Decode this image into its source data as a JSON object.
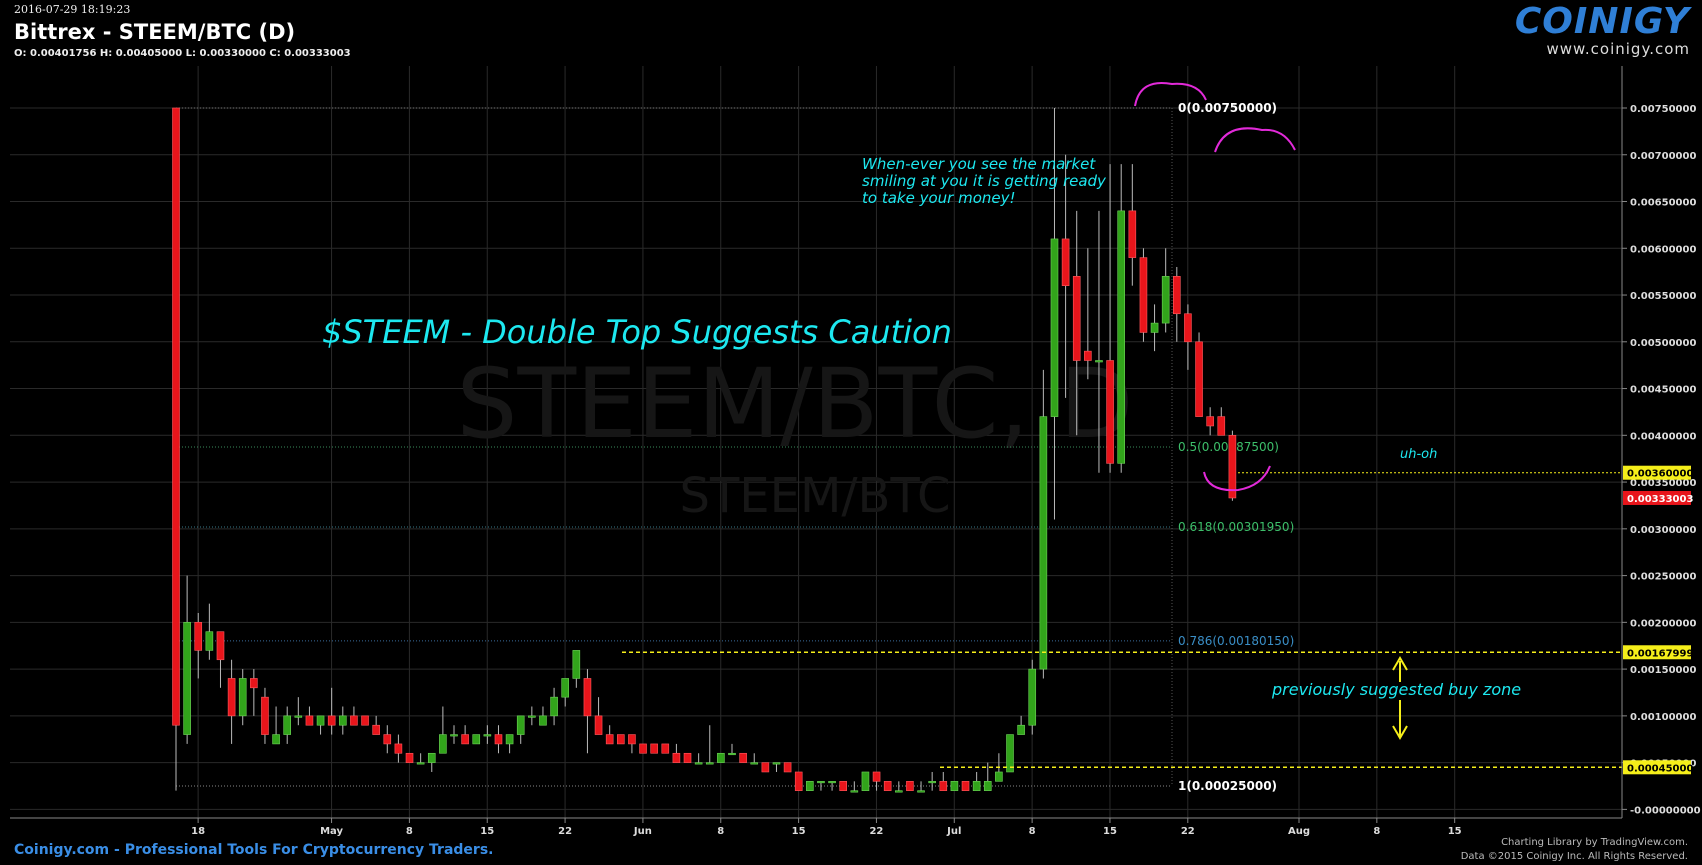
{
  "header": {
    "timestamp": "2016-07-29 18:19:23",
    "title": "Bittrex - STEEM/BTC (D)",
    "ohlc": "O: 0.00401756 H: 0.00405000 L: 0.00330000 C: 0.00333003"
  },
  "logo": {
    "name": "COINIGY",
    "url": "www.coinigy.com"
  },
  "footer": {
    "tagline": "Coinigy.com - Professional Tools For Cryptocurrency Traders.",
    "credit1": "Charting Library by TradingView.com.",
    "credit2": "Data ©2015 Coinigy Inc. All Rights Reserved."
  },
  "annotations": {
    "main_title": "$STEEM - Double Top Suggests Caution",
    "smile_note_1": "When-ever you see the market",
    "smile_note_2": "smiling at you it is getting ready",
    "smile_note_3": "to take your money!",
    "uh_oh": "uh-oh",
    "buy_zone": "previously suggested buy zone"
  },
  "colors": {
    "background": "#000000",
    "grid": "#2a2a2a",
    "up": "#32a41b",
    "down": "#e8151b",
    "fib": "#3a8c8c",
    "annotation": "#1de8f0",
    "smile": "#e22ad9",
    "marker": "#f5ee1a",
    "price_tag": "#e8151b"
  },
  "chart_data": {
    "type": "candlestick",
    "watermark": [
      "STEEM/BTC, D",
      "STEEM/BTC"
    ],
    "x_ticks": [
      "18",
      "May",
      "8",
      "15",
      "22",
      "Jun",
      "8",
      "15",
      "22",
      "Jul",
      "8",
      "15",
      "22",
      "Aug",
      "8",
      "15"
    ],
    "y_ticks": [
      "0.00750000",
      "0.00700000",
      "0.00650000",
      "0.00600000",
      "0.00550000",
      "0.00500000",
      "0.00450000",
      "0.00400000",
      "0.00350000",
      "0.00300000",
      "0.00250000",
      "0.00200000",
      "0.00150000",
      "0.00100000",
      "0.00050000",
      "-0.00000000"
    ],
    "ylim": [
      -3e-05,
      0.0081
    ],
    "fib_levels": [
      {
        "label": "0(0.00750000)",
        "value": 0.0075
      },
      {
        "label": "0.5(0.00387500)",
        "value": 0.003875
      },
      {
        "label": "0.618(0.00301950)",
        "value": 0.0030195
      },
      {
        "label": "0.786(0.00180150)",
        "value": 0.0018015
      },
      {
        "label": "1(0.00025000)",
        "value": 0.00025
      }
    ],
    "price_tags": [
      {
        "label": "0.00360000",
        "value": 0.0036,
        "style": "yellow"
      },
      {
        "label": "0.00333003",
        "value": 0.00333003,
        "style": "red"
      },
      {
        "label": "0.00167999",
        "value": 0.00167999,
        "style": "yellow"
      },
      {
        "label": "0.00045000",
        "value": 0.00045,
        "style": "yellow"
      }
    ],
    "candles": [
      [
        0.0075,
        0.0075,
        0.0002,
        0.0009
      ],
      [
        0.0008,
        0.0025,
        0.0007,
        0.002
      ],
      [
        0.002,
        0.0021,
        0.0014,
        0.0017
      ],
      [
        0.0017,
        0.0022,
        0.0016,
        0.0019
      ],
      [
        0.0019,
        0.0019,
        0.0013,
        0.0016
      ],
      [
        0.0014,
        0.0016,
        0.0007,
        0.001
      ],
      [
        0.001,
        0.0015,
        0.0009,
        0.0014
      ],
      [
        0.0014,
        0.0015,
        0.001,
        0.0013
      ],
      [
        0.0012,
        0.0013,
        0.0007,
        0.0008
      ],
      [
        0.0007,
        0.0011,
        0.0007,
        0.0008
      ],
      [
        0.0008,
        0.0011,
        0.0007,
        0.001
      ],
      [
        0.001,
        0.0012,
        0.0009,
        0.001
      ],
      [
        0.001,
        0.0011,
        0.0009,
        0.0009
      ],
      [
        0.0009,
        0.001,
        0.0008,
        0.001
      ],
      [
        0.001,
        0.0013,
        0.0008,
        0.0009
      ],
      [
        0.0009,
        0.0011,
        0.0008,
        0.001
      ],
      [
        0.001,
        0.0011,
        0.0009,
        0.0009
      ],
      [
        0.001,
        0.001,
        0.0009,
        0.0009
      ],
      [
        0.0009,
        0.001,
        0.0008,
        0.0008
      ],
      [
        0.0008,
        0.0009,
        0.0006,
        0.0007
      ],
      [
        0.0007,
        0.0008,
        0.0005,
        0.0006
      ],
      [
        0.0006,
        0.0006,
        0.0005,
        0.0005
      ],
      [
        0.0005,
        0.0006,
        0.0005,
        0.0005
      ],
      [
        0.0005,
        0.0006,
        0.0004,
        0.0006
      ],
      [
        0.0006,
        0.0011,
        0.0006,
        0.0008
      ],
      [
        0.0008,
        0.0009,
        0.0007,
        0.0008
      ],
      [
        0.0008,
        0.0009,
        0.0007,
        0.0007
      ],
      [
        0.0007,
        0.0008,
        0.0007,
        0.0008
      ],
      [
        0.0008,
        0.0009,
        0.0007,
        0.0008
      ],
      [
        0.0008,
        0.0009,
        0.0006,
        0.0007
      ],
      [
        0.0007,
        0.0008,
        0.0006,
        0.0008
      ],
      [
        0.0008,
        0.001,
        0.0007,
        0.001
      ],
      [
        0.001,
        0.0011,
        0.0009,
        0.001
      ],
      [
        0.0009,
        0.0011,
        0.0009,
        0.001
      ],
      [
        0.001,
        0.0013,
        0.0009,
        0.0012
      ],
      [
        0.0012,
        0.0014,
        0.0011,
        0.0014
      ],
      [
        0.0014,
        0.0017,
        0.0013,
        0.0017
      ],
      [
        0.0014,
        0.0015,
        0.0006,
        0.001
      ],
      [
        0.001,
        0.0012,
        0.0008,
        0.0008
      ],
      [
        0.0008,
        0.0009,
        0.0007,
        0.0007
      ],
      [
        0.0008,
        0.0008,
        0.0007,
        0.0007
      ],
      [
        0.0008,
        0.0008,
        0.0006,
        0.0007
      ],
      [
        0.0007,
        0.0007,
        0.0006,
        0.0006
      ],
      [
        0.0007,
        0.0007,
        0.0006,
        0.0006
      ],
      [
        0.0007,
        0.0007,
        0.0006,
        0.0006
      ],
      [
        0.0006,
        0.0007,
        0.0005,
        0.0005
      ],
      [
        0.0006,
        0.0006,
        0.0005,
        0.0005
      ],
      [
        0.0005,
        0.0006,
        0.0005,
        0.0005
      ],
      [
        0.0005,
        0.0009,
        0.0005,
        0.0005
      ],
      [
        0.0005,
        0.0006,
        0.0005,
        0.0006
      ],
      [
        0.0006,
        0.0007,
        0.0006,
        0.0006
      ],
      [
        0.0006,
        0.0006,
        0.0005,
        0.0005
      ],
      [
        0.0005,
        0.0006,
        0.0005,
        0.0005
      ],
      [
        0.0005,
        0.0005,
        0.0004,
        0.0004
      ],
      [
        0.0005,
        0.0005,
        0.0004,
        0.0005
      ],
      [
        0.0005,
        0.0005,
        0.0004,
        0.0004
      ],
      [
        0.0004,
        0.0004,
        0.0002,
        0.0002
      ],
      [
        0.0002,
        0.0003,
        0.0002,
        0.0003
      ],
      [
        0.0003,
        0.0003,
        0.0002,
        0.0003
      ],
      [
        0.0003,
        0.0003,
        0.0002,
        0.0003
      ],
      [
        0.0003,
        0.0003,
        0.0002,
        0.0002
      ],
      [
        0.0002,
        0.0003,
        0.0002,
        0.0002
      ],
      [
        0.0002,
        0.0004,
        0.0002,
        0.0004
      ],
      [
        0.0004,
        0.0004,
        0.0002,
        0.0003
      ],
      [
        0.0003,
        0.0003,
        0.0002,
        0.0002
      ],
      [
        0.0002,
        0.0003,
        0.0002,
        0.0002
      ],
      [
        0.0003,
        0.0003,
        0.0002,
        0.0002
      ],
      [
        0.0002,
        0.0003,
        0.0002,
        0.0002
      ],
      [
        0.0003,
        0.0004,
        0.0002,
        0.0003
      ],
      [
        0.0003,
        0.0004,
        0.0002,
        0.0002
      ],
      [
        0.0002,
        0.0003,
        0.0002,
        0.0003
      ],
      [
        0.0003,
        0.0003,
        0.0002,
        0.0002
      ],
      [
        0.0002,
        0.0004,
        0.0002,
        0.0003
      ],
      [
        0.0002,
        0.0005,
        0.0002,
        0.0003
      ],
      [
        0.0003,
        0.0006,
        0.0003,
        0.0004
      ],
      [
        0.0004,
        0.0008,
        0.0004,
        0.0008
      ],
      [
        0.0008,
        0.001,
        0.0008,
        0.0009
      ],
      [
        0.0009,
        0.0016,
        0.0008,
        0.0015
      ],
      [
        0.0015,
        0.0047,
        0.0014,
        0.0042
      ],
      [
        0.0042,
        0.0075,
        0.0031,
        0.0061
      ],
      [
        0.0061,
        0.007,
        0.0044,
        0.0056
      ],
      [
        0.0057,
        0.0064,
        0.004,
        0.0048
      ],
      [
        0.0049,
        0.006,
        0.0046,
        0.0048
      ],
      [
        0.0048,
        0.0064,
        0.0036,
        0.0048
      ],
      [
        0.0048,
        0.0069,
        0.0036,
        0.0037
      ],
      [
        0.0037,
        0.0069,
        0.0036,
        0.0064
      ],
      [
        0.0064,
        0.0069,
        0.0056,
        0.0059
      ],
      [
        0.0059,
        0.006,
        0.005,
        0.0051
      ],
      [
        0.0051,
        0.0054,
        0.0049,
        0.0052
      ],
      [
        0.0052,
        0.006,
        0.0051,
        0.0057
      ],
      [
        0.0057,
        0.0058,
        0.005,
        0.0053
      ],
      [
        0.0053,
        0.0054,
        0.0047,
        0.005
      ],
      [
        0.005,
        0.0051,
        0.0042,
        0.0042
      ],
      [
        0.0042,
        0.0043,
        0.004,
        0.0041
      ],
      [
        0.0042,
        0.0043,
        0.004,
        0.004
      ],
      [
        0.004,
        0.00405,
        0.0033,
        0.00333
      ]
    ]
  }
}
